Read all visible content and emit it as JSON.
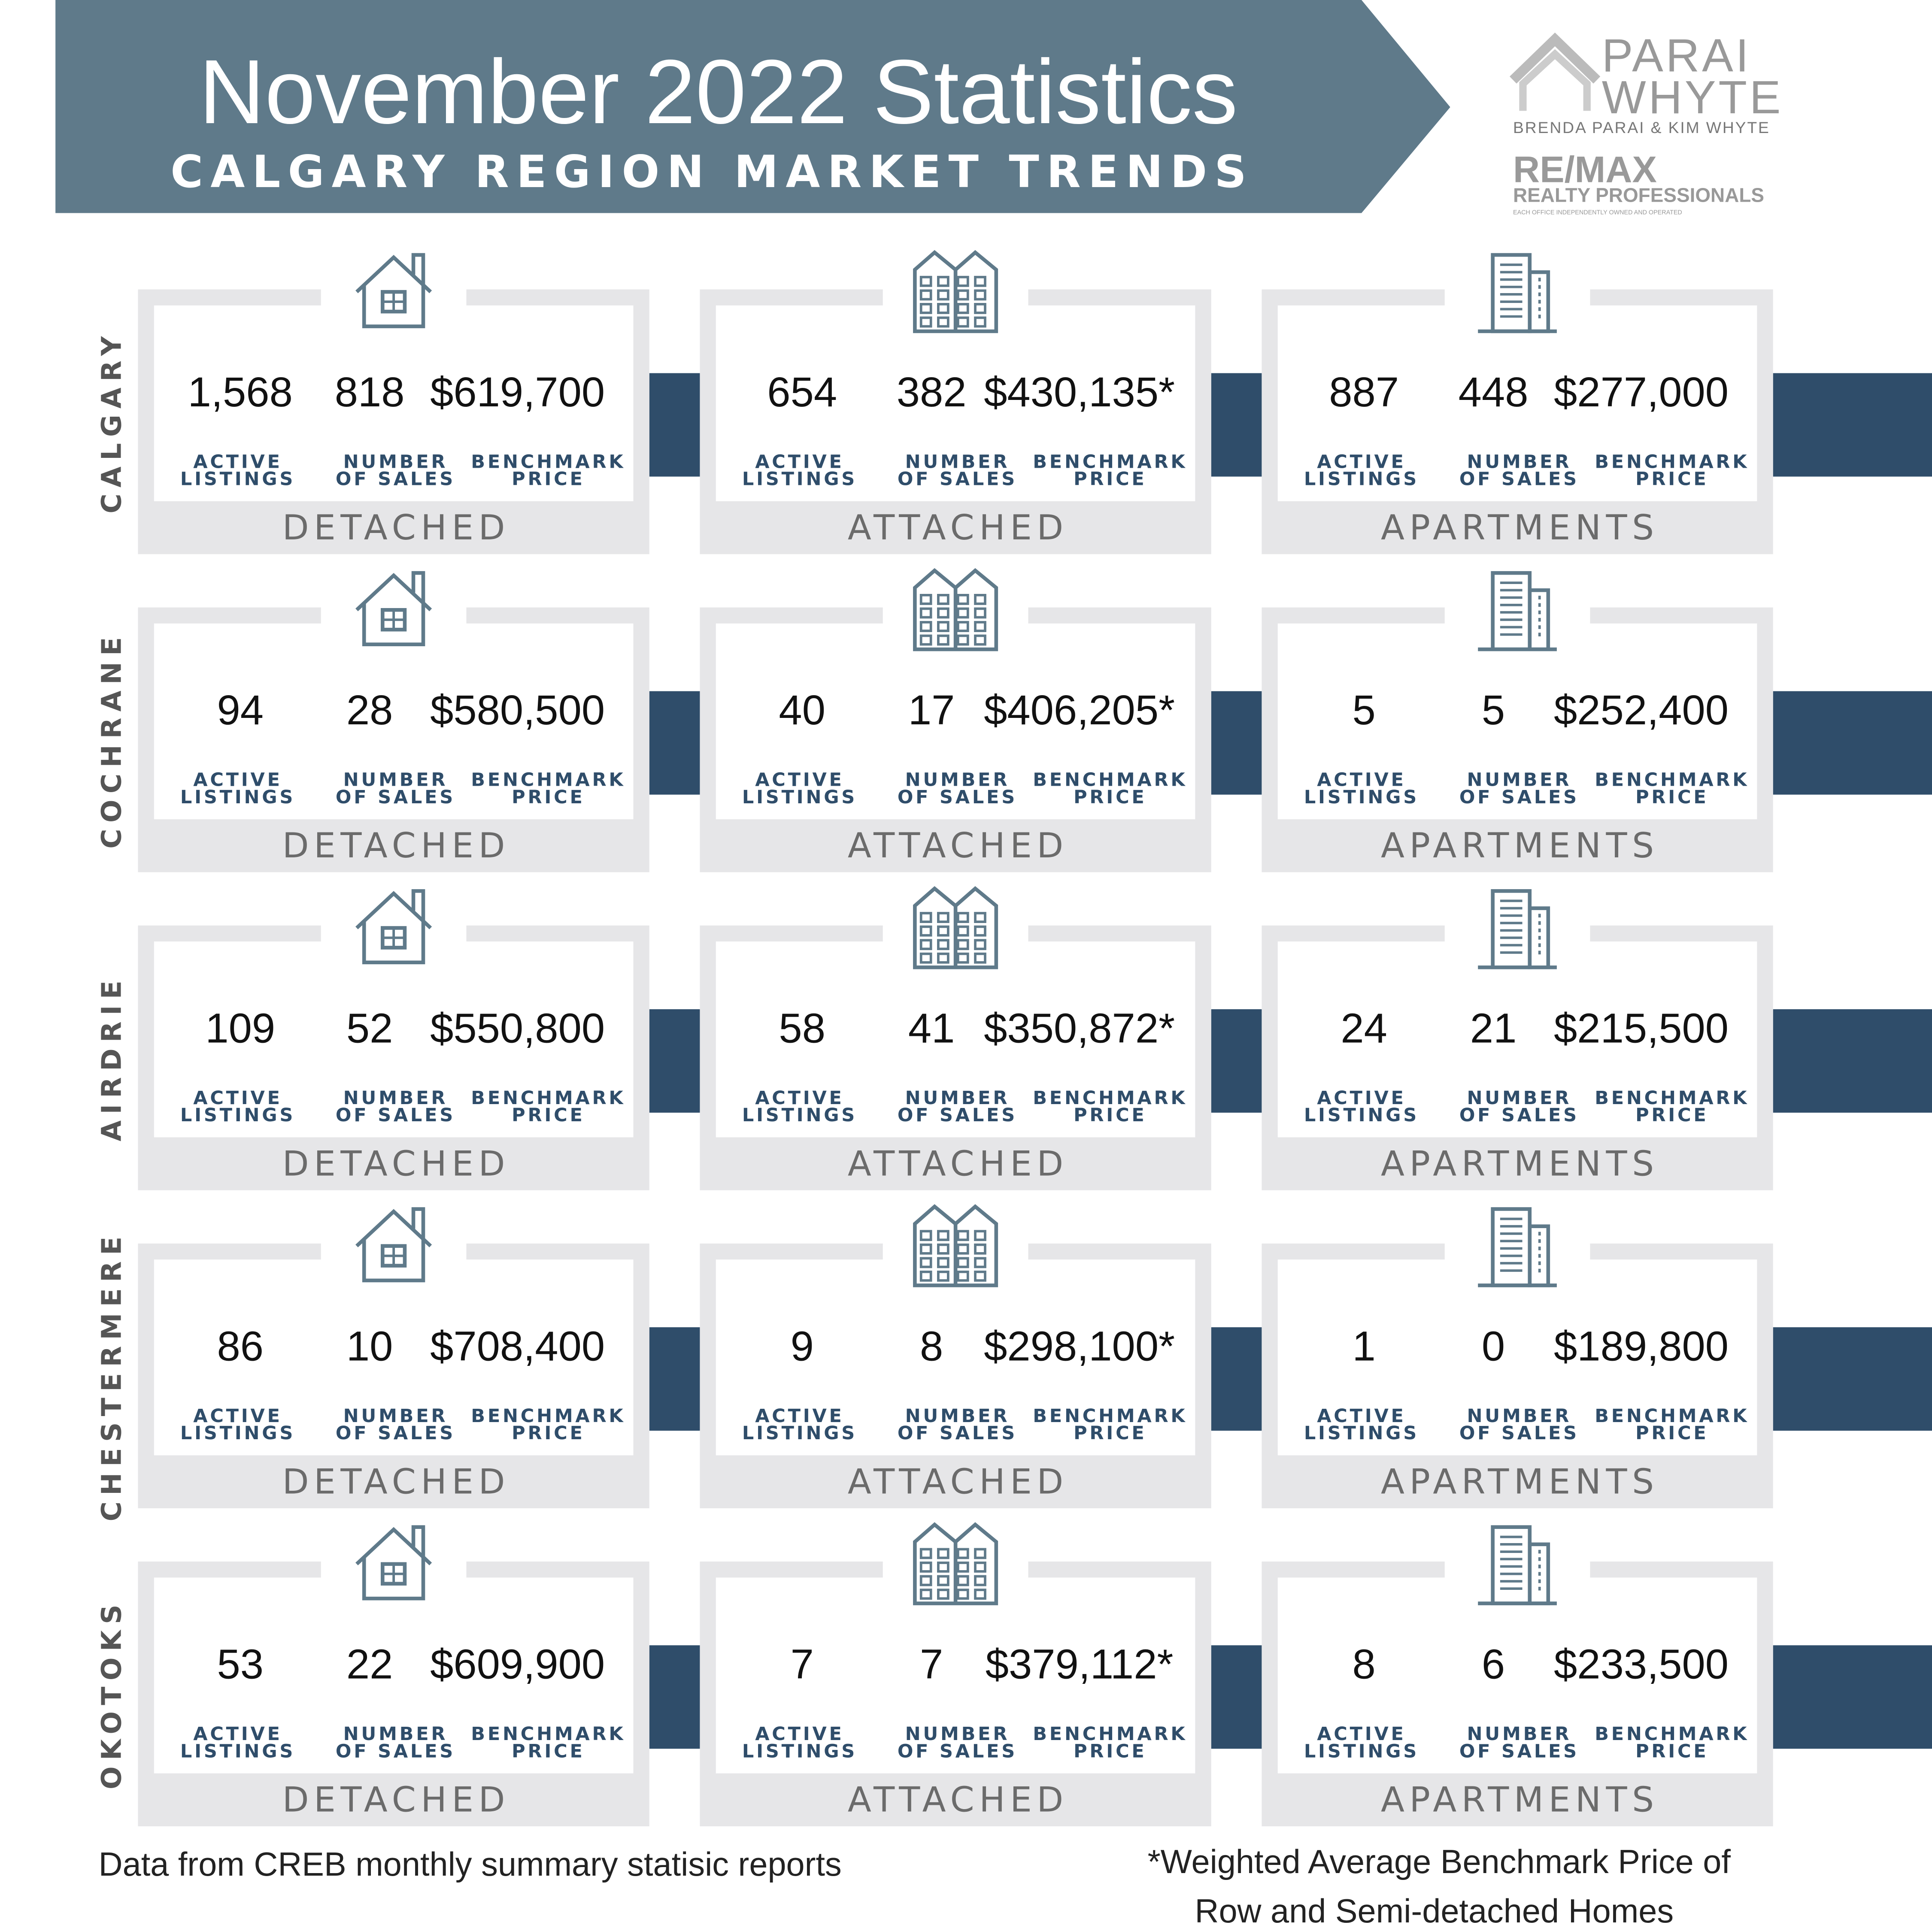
{
  "header": {
    "title": "November 2022 Statistics",
    "subtitle": "CALGARY REGION MARKET TRENDS"
  },
  "logo": {
    "line1": "PARAI",
    "line2": "WHYTE",
    "agents": "BRENDA PARAI & KIM WHYTE",
    "brand": "RE/MAX",
    "brokerage": "REALTY PROFESSIONALS",
    "disclaimer": "EACH OFFICE INDEPENDENTLY OWNED AND OPERATED"
  },
  "labels": {
    "active": [
      "ACTIVE",
      "LISTINGS"
    ],
    "sales": [
      "NUMBER",
      "OF SALES"
    ],
    "price": [
      "BENCHMARK",
      "PRICE"
    ]
  },
  "types": [
    "DETACHED",
    "ATTACHED",
    "APARTMENTS"
  ],
  "regions": [
    {
      "name": "CALGARY",
      "cards": [
        {
          "active": "1,568",
          "sales": "818",
          "price": "$619,700"
        },
        {
          "active": "654",
          "sales": "382",
          "price": "$430,135*"
        },
        {
          "active": "887",
          "sales": "448",
          "price": "$277,000"
        }
      ]
    },
    {
      "name": "COCHRANE",
      "cards": [
        {
          "active": "94",
          "sales": "28",
          "price": "$580,500"
        },
        {
          "active": "40",
          "sales": "17",
          "price": "$406,205*"
        },
        {
          "active": "5",
          "sales": "5",
          "price": "$252,400"
        }
      ]
    },
    {
      "name": "AIRDRIE",
      "cards": [
        {
          "active": "109",
          "sales": "52",
          "price": "$550,800"
        },
        {
          "active": "58",
          "sales": "41",
          "price": "$350,872*"
        },
        {
          "active": "24",
          "sales": "21",
          "price": "$215,500"
        }
      ]
    },
    {
      "name": "CHESTERMERE",
      "cards": [
        {
          "active": "86",
          "sales": "10",
          "price": "$708,400"
        },
        {
          "active": "9",
          "sales": "8",
          "price": "$298,100*"
        },
        {
          "active": "1",
          "sales": "0",
          "price": "$189,800"
        }
      ]
    },
    {
      "name": "OKOTOKS",
      "cards": [
        {
          "active": "53",
          "sales": "22",
          "price": "$609,900"
        },
        {
          "active": "7",
          "sales": "7",
          "price": "$379,112*"
        },
        {
          "active": "8",
          "sales": "6",
          "price": "$233,500"
        }
      ]
    }
  ],
  "footer": {
    "source": "Data from CREB monthly summary statisic reports",
    "note": [
      "*Weighted Average Benchmark Price of",
      "Row and Semi-detached  Homes"
    ]
  }
}
